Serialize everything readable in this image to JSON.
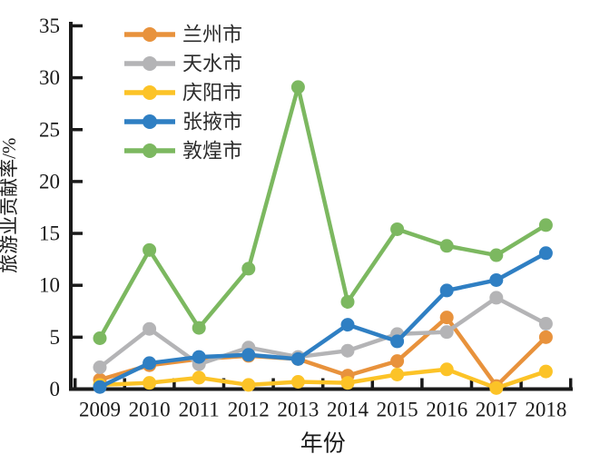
{
  "chart_data": {
    "type": "line",
    "title": "",
    "xlabel": "年份",
    "ylabel": "旅游业贡献率/%",
    "x": [
      "2009",
      "2010",
      "2011",
      "2012",
      "2013",
      "2014",
      "2015",
      "2016",
      "2017",
      "2018"
    ],
    "ylim": [
      0,
      35
    ],
    "yticks": [
      0,
      5,
      10,
      15,
      20,
      25,
      30,
      35
    ],
    "grid": false,
    "legend_position": "top-left-inside",
    "axis_color": "#1A1A1A",
    "series": [
      {
        "name": "兰州市",
        "color": "#E8923C",
        "values": [
          0.9,
          2.3,
          2.9,
          3.2,
          2.9,
          1.3,
          2.7,
          6.9,
          0.3,
          5.0
        ]
      },
      {
        "name": "天水市",
        "color": "#B4B4B6",
        "values": [
          2.1,
          5.8,
          2.4,
          4.0,
          3.1,
          3.7,
          5.3,
          5.5,
          8.8,
          6.3
        ]
      },
      {
        "name": "庆阳市",
        "color": "#FCC327",
        "values": [
          0.4,
          0.6,
          1.1,
          0.4,
          0.7,
          0.6,
          1.4,
          1.9,
          0.1,
          1.7
        ]
      },
      {
        "name": "张掖市",
        "color": "#2F7FC3",
        "values": [
          0.2,
          2.5,
          3.1,
          3.3,
          2.9,
          6.2,
          4.6,
          9.5,
          10.5,
          13.1
        ]
      },
      {
        "name": "敦煌市",
        "color": "#7CB860",
        "values": [
          4.9,
          13.4,
          5.9,
          11.6,
          29.1,
          8.4,
          15.4,
          13.8,
          12.9,
          15.8
        ]
      }
    ]
  }
}
